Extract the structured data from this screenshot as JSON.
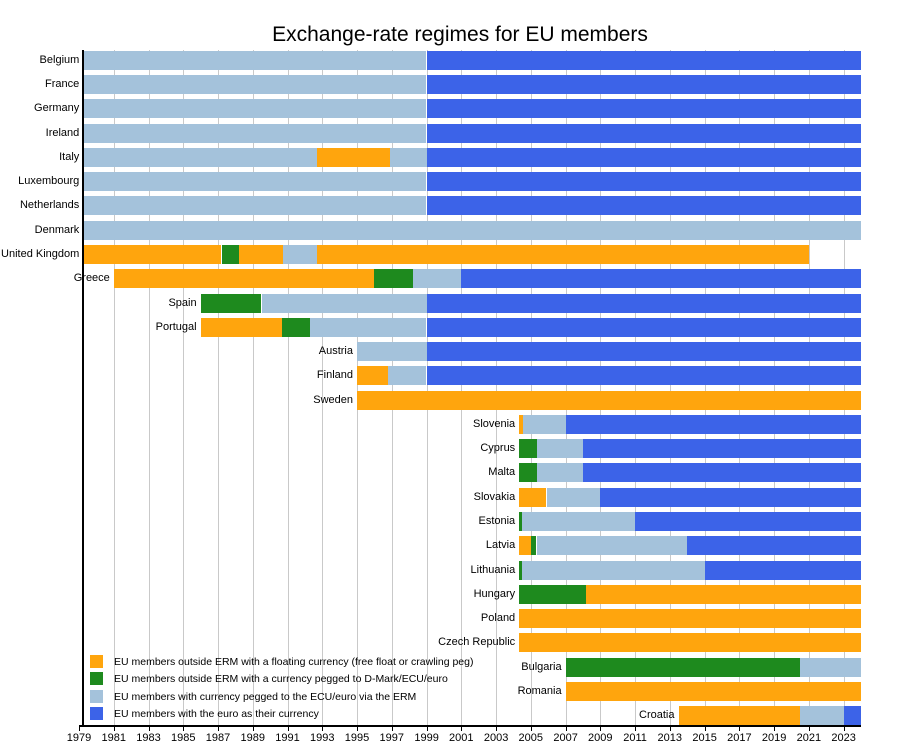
{
  "title": "Exchange-rate regimes for EU members",
  "colors": {
    "float": "#FFA50D",
    "pegged": "#1E8A1E",
    "erm": "#A4C2DB",
    "euro": "#3C63E8",
    "gridline": "#C9C9C9",
    "axis": "#000000"
  },
  "legend": [
    {
      "key": "float",
      "label": "EU members outside ERM with a floating currency (free float or crawling peg)"
    },
    {
      "key": "pegged",
      "label": "EU members outside ERM with a currency pegged to D-Mark/ECU/euro"
    },
    {
      "key": "erm",
      "label": "EU members with currency pegged to the ECU/euro via the ERM"
    },
    {
      "key": "euro",
      "label": "EU members with the euro as their currency"
    }
  ],
  "chart_data": {
    "type": "bar",
    "subtype": "timeline-gantt",
    "title": "Exchange-rate regimes for EU members",
    "x_range": [
      1979,
      2024
    ],
    "x_tick_years": [
      1979,
      1981,
      1983,
      1985,
      1987,
      1989,
      1991,
      1993,
      1995,
      1997,
      1999,
      2001,
      2003,
      2005,
      2007,
      2009,
      2011,
      2013,
      2015,
      2017,
      2019,
      2021,
      2023
    ],
    "grid": "vertical-every-2-years",
    "legend_position": "bottom-left-inside",
    "rows": [
      {
        "country": "Belgium",
        "segments": [
          {
            "regime": "erm",
            "start": 1979.25,
            "end": 1999.0
          },
          {
            "regime": "euro",
            "start": 1999.0,
            "end": 2024.0
          }
        ]
      },
      {
        "country": "France",
        "segments": [
          {
            "regime": "erm",
            "start": 1979.25,
            "end": 1999.0
          },
          {
            "regime": "euro",
            "start": 1999.0,
            "end": 2024.0
          }
        ]
      },
      {
        "country": "Germany",
        "segments": [
          {
            "regime": "erm",
            "start": 1979.25,
            "end": 1999.0
          },
          {
            "regime": "euro",
            "start": 1999.0,
            "end": 2024.0
          }
        ]
      },
      {
        "country": "Ireland",
        "segments": [
          {
            "regime": "erm",
            "start": 1979.25,
            "end": 1999.0
          },
          {
            "regime": "euro",
            "start": 1999.0,
            "end": 2024.0
          }
        ]
      },
      {
        "country": "Italy",
        "segments": [
          {
            "regime": "erm",
            "start": 1979.25,
            "end": 1992.7
          },
          {
            "regime": "float",
            "start": 1992.7,
            "end": 1996.9
          },
          {
            "regime": "erm",
            "start": 1996.9,
            "end": 1999.0
          },
          {
            "regime": "euro",
            "start": 1999.0,
            "end": 2024.0
          }
        ]
      },
      {
        "country": "Luxembourg",
        "segments": [
          {
            "regime": "erm",
            "start": 1979.25,
            "end": 1999.0
          },
          {
            "regime": "euro",
            "start": 1999.0,
            "end": 2024.0
          }
        ]
      },
      {
        "country": "Netherlands",
        "segments": [
          {
            "regime": "erm",
            "start": 1979.25,
            "end": 1999.0
          },
          {
            "regime": "euro",
            "start": 1999.0,
            "end": 2024.0
          }
        ]
      },
      {
        "country": "Denmark",
        "segments": [
          {
            "regime": "erm",
            "start": 1979.25,
            "end": 2024.0
          }
        ]
      },
      {
        "country": "United Kingdom",
        "segments": [
          {
            "regime": "float",
            "start": 1979.25,
            "end": 1987.2
          },
          {
            "regime": "pegged",
            "start": 1987.2,
            "end": 1988.2
          },
          {
            "regime": "float",
            "start": 1988.2,
            "end": 1990.75
          },
          {
            "regime": "erm",
            "start": 1990.75,
            "end": 1992.7
          },
          {
            "regime": "float",
            "start": 1992.7,
            "end": 2021.0
          }
        ]
      },
      {
        "country": "Greece",
        "segments": [
          {
            "regime": "float",
            "start": 1981.0,
            "end": 1996.0
          },
          {
            "regime": "pegged",
            "start": 1996.0,
            "end": 1998.2
          },
          {
            "regime": "erm",
            "start": 1998.2,
            "end": 2001.0
          },
          {
            "regime": "euro",
            "start": 2001.0,
            "end": 2024.0
          }
        ]
      },
      {
        "country": "Spain",
        "segments": [
          {
            "regime": "pegged",
            "start": 1986.0,
            "end": 1989.5
          },
          {
            "regime": "erm",
            "start": 1989.5,
            "end": 1999.0
          },
          {
            "regime": "euro",
            "start": 1999.0,
            "end": 2024.0
          }
        ]
      },
      {
        "country": "Portugal",
        "segments": [
          {
            "regime": "float",
            "start": 1986.0,
            "end": 1990.7
          },
          {
            "regime": "pegged",
            "start": 1990.7,
            "end": 1992.3
          },
          {
            "regime": "erm",
            "start": 1992.3,
            "end": 1999.0
          },
          {
            "regime": "euro",
            "start": 1999.0,
            "end": 2024.0
          }
        ]
      },
      {
        "country": "Austria",
        "segments": [
          {
            "regime": "erm",
            "start": 1995.0,
            "end": 1999.0
          },
          {
            "regime": "euro",
            "start": 1999.0,
            "end": 2024.0
          }
        ]
      },
      {
        "country": "Finland",
        "segments": [
          {
            "regime": "float",
            "start": 1995.0,
            "end": 1996.8
          },
          {
            "regime": "erm",
            "start": 1996.8,
            "end": 1999.0
          },
          {
            "regime": "euro",
            "start": 1999.0,
            "end": 2024.0
          }
        ]
      },
      {
        "country": "Sweden",
        "segments": [
          {
            "regime": "float",
            "start": 1995.0,
            "end": 2024.0
          }
        ]
      },
      {
        "country": "Slovenia",
        "segments": [
          {
            "regime": "float",
            "start": 2004.33,
            "end": 2004.55
          },
          {
            "regime": "erm",
            "start": 2004.55,
            "end": 2007.0
          },
          {
            "regime": "euro",
            "start": 2007.0,
            "end": 2024.0
          }
        ]
      },
      {
        "country": "Cyprus",
        "segments": [
          {
            "regime": "pegged",
            "start": 2004.33,
            "end": 2005.33
          },
          {
            "regime": "erm",
            "start": 2005.33,
            "end": 2008.0
          },
          {
            "regime": "euro",
            "start": 2008.0,
            "end": 2024.0
          }
        ]
      },
      {
        "country": "Malta",
        "segments": [
          {
            "regime": "pegged",
            "start": 2004.33,
            "end": 2005.33
          },
          {
            "regime": "erm",
            "start": 2005.33,
            "end": 2008.0
          },
          {
            "regime": "euro",
            "start": 2008.0,
            "end": 2024.0
          }
        ]
      },
      {
        "country": "Slovakia",
        "segments": [
          {
            "regime": "float",
            "start": 2004.33,
            "end": 2005.9
          },
          {
            "regime": "erm",
            "start": 2005.9,
            "end": 2009.0
          },
          {
            "regime": "euro",
            "start": 2009.0,
            "end": 2024.0
          }
        ]
      },
      {
        "country": "Estonia",
        "segments": [
          {
            "regime": "pegged",
            "start": 2004.33,
            "end": 2004.5
          },
          {
            "regime": "erm",
            "start": 2004.5,
            "end": 2011.0
          },
          {
            "regime": "euro",
            "start": 2011.0,
            "end": 2024.0
          }
        ]
      },
      {
        "country": "Latvia",
        "segments": [
          {
            "regime": "float",
            "start": 2004.33,
            "end": 2005.0
          },
          {
            "regime": "pegged",
            "start": 2005.0,
            "end": 2005.33
          },
          {
            "regime": "erm",
            "start": 2005.33,
            "end": 2014.0
          },
          {
            "regime": "euro",
            "start": 2014.0,
            "end": 2024.0
          }
        ]
      },
      {
        "country": "Lithuania",
        "segments": [
          {
            "regime": "pegged",
            "start": 2004.33,
            "end": 2004.5
          },
          {
            "regime": "erm",
            "start": 2004.5,
            "end": 2015.0
          },
          {
            "regime": "euro",
            "start": 2015.0,
            "end": 2024.0
          }
        ]
      },
      {
        "country": "Hungary",
        "segments": [
          {
            "regime": "pegged",
            "start": 2004.33,
            "end": 2008.15
          },
          {
            "regime": "float",
            "start": 2008.15,
            "end": 2024.0
          }
        ]
      },
      {
        "country": "Poland",
        "segments": [
          {
            "regime": "float",
            "start": 2004.33,
            "end": 2024.0
          }
        ]
      },
      {
        "country": "Czech Republic",
        "segments": [
          {
            "regime": "float",
            "start": 2004.33,
            "end": 2024.0
          }
        ]
      },
      {
        "country": "Bulgaria",
        "segments": [
          {
            "regime": "pegged",
            "start": 2007.0,
            "end": 2020.5
          },
          {
            "regime": "erm",
            "start": 2020.5,
            "end": 2024.0
          }
        ]
      },
      {
        "country": "Romania",
        "segments": [
          {
            "regime": "float",
            "start": 2007.0,
            "end": 2024.0
          }
        ]
      },
      {
        "country": "Croatia",
        "segments": [
          {
            "regime": "float",
            "start": 2013.5,
            "end": 2020.5
          },
          {
            "regime": "erm",
            "start": 2020.5,
            "end": 2023.0
          },
          {
            "regime": "euro",
            "start": 2023.0,
            "end": 2024.0
          }
        ]
      }
    ]
  }
}
